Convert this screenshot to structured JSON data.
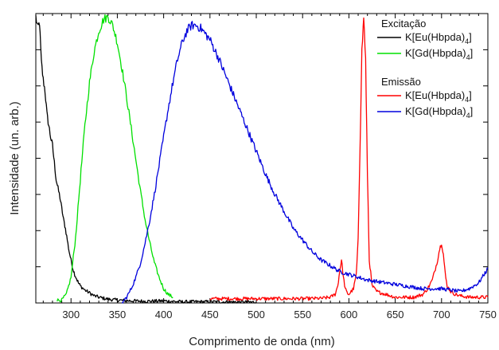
{
  "chart_data": {
    "type": "line",
    "xlabel": "Comprimento de onda (nm)",
    "ylabel": "Intensidade (un. arb.)",
    "xlim": [
      262,
      750
    ],
    "ylim": [
      0,
      1
    ],
    "x_ticks": [
      300,
      350,
      400,
      450,
      500,
      550,
      600,
      650,
      700,
      750
    ],
    "y_tick_labels": false,
    "grid": false,
    "legend_groups": [
      {
        "title": "Excitação",
        "entries": [
          {
            "base": "K[Eu(Hbpda)",
            "sub": "4",
            "close": "]",
            "color": "#000000"
          },
          {
            "base": "K[Gd(Hbpda)",
            "sub": "4",
            "close": "]",
            "color": "#00e000"
          }
        ]
      },
      {
        "title": "Emissão",
        "entries": [
          {
            "base": "K[Eu(Hbpda)",
            "sub": "4",
            "close": "]",
            "color": "#ff0000"
          },
          {
            "base": "K[Gd(Hbpda)",
            "sub": "4",
            "close": "]",
            "color": "#0000dd"
          }
        ]
      }
    ],
    "series": [
      {
        "color": "#000000",
        "role": "excitation",
        "x": [
          262,
          264,
          266,
          268,
          270,
          272,
          274,
          276,
          278,
          280,
          282,
          284,
          286,
          288,
          290,
          292,
          294,
          296,
          298,
          300,
          302,
          304,
          306,
          308,
          310,
          315,
          320,
          325,
          330,
          340,
          350,
          360,
          380,
          400,
          420,
          450,
          480,
          500
        ],
        "y": [
          1.0,
          0.96,
          0.98,
          0.84,
          0.78,
          0.74,
          0.66,
          0.62,
          0.58,
          0.55,
          0.49,
          0.43,
          0.4,
          0.37,
          0.33,
          0.29,
          0.26,
          0.22,
          0.18,
          0.15,
          0.12,
          0.1,
          0.085,
          0.07,
          0.06,
          0.045,
          0.035,
          0.025,
          0.02,
          0.013,
          0.01,
          0.008,
          0.006,
          0.007,
          0.004,
          0.004,
          0.003,
          0.003
        ]
      },
      {
        "color": "#00e000",
        "role": "excitation",
        "x": [
          285,
          290,
          295,
          300,
          305,
          310,
          315,
          320,
          325,
          330,
          335,
          340,
          345,
          350,
          355,
          360,
          365,
          370,
          375,
          380,
          385,
          390,
          395,
          400,
          405,
          410
        ],
        "y": [
          0.01,
          0.01,
          0.03,
          0.09,
          0.23,
          0.43,
          0.62,
          0.77,
          0.88,
          0.95,
          0.99,
          1.0,
          0.97,
          0.91,
          0.82,
          0.72,
          0.61,
          0.5,
          0.39,
          0.29,
          0.21,
          0.14,
          0.09,
          0.05,
          0.03,
          0.02
        ]
      },
      {
        "color": "#ff0000",
        "role": "emission",
        "x": [
          450,
          500,
          550,
          570,
          580,
          585,
          588,
          590,
          592,
          594,
          596,
          598,
          600,
          605,
          608,
          610,
          612,
          614,
          616,
          618,
          620,
          622,
          625,
          630,
          640,
          650,
          660,
          670,
          680,
          685,
          690,
          695,
          698,
          700,
          702,
          704,
          706,
          710,
          715,
          720,
          730,
          740,
          750
        ],
        "y": [
          0.015,
          0.015,
          0.015,
          0.016,
          0.02,
          0.03,
          0.06,
          0.11,
          0.15,
          0.09,
          0.05,
          0.035,
          0.03,
          0.05,
          0.1,
          0.22,
          0.55,
          0.88,
          1.0,
          0.85,
          0.45,
          0.15,
          0.06,
          0.04,
          0.03,
          0.02,
          0.02,
          0.02,
          0.03,
          0.05,
          0.08,
          0.14,
          0.19,
          0.21,
          0.17,
          0.1,
          0.06,
          0.04,
          0.03,
          0.025,
          0.02,
          0.02,
          0.02
        ]
      },
      {
        "color": "#0000dd",
        "role": "emission",
        "x": [
          355,
          360,
          365,
          370,
          375,
          380,
          385,
          390,
          395,
          400,
          405,
          410,
          415,
          420,
          425,
          430,
          435,
          440,
          450,
          460,
          470,
          480,
          490,
          500,
          510,
          520,
          530,
          540,
          550,
          560,
          570,
          580,
          590,
          600,
          610,
          620,
          640,
          660,
          680,
          700,
          720,
          730,
          740,
          750
        ],
        "y": [
          0.0,
          0.02,
          0.05,
          0.09,
          0.14,
          0.21,
          0.29,
          0.38,
          0.48,
          0.58,
          0.68,
          0.77,
          0.85,
          0.91,
          0.95,
          0.97,
          0.97,
          0.96,
          0.92,
          0.85,
          0.77,
          0.69,
          0.61,
          0.53,
          0.45,
          0.38,
          0.32,
          0.26,
          0.22,
          0.18,
          0.15,
          0.13,
          0.11,
          0.1,
          0.09,
          0.08,
          0.07,
          0.06,
          0.05,
          0.05,
          0.04,
          0.05,
          0.07,
          0.12
        ]
      }
    ]
  }
}
